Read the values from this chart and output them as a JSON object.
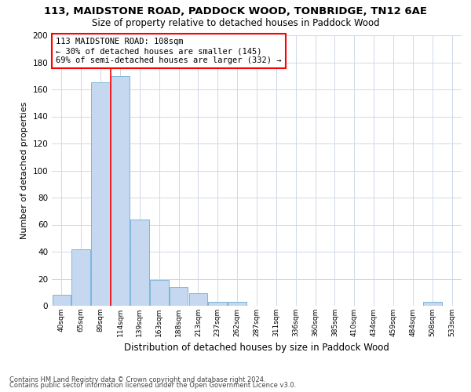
{
  "title1": "113, MAIDSTONE ROAD, PADDOCK WOOD, TONBRIDGE, TN12 6AE",
  "title2": "Size of property relative to detached houses in Paddock Wood",
  "xlabel": "Distribution of detached houses by size in Paddock Wood",
  "ylabel": "Number of detached properties",
  "footnote1": "Contains HM Land Registry data © Crown copyright and database right 2024.",
  "footnote2": "Contains public sector information licensed under the Open Government Licence v3.0.",
  "annotation_line1": "113 MAIDSTONE ROAD: 108sqm",
  "annotation_line2": "← 30% of detached houses are smaller (145)",
  "annotation_line3": "69% of semi-detached houses are larger (332) →",
  "bar_color": "#c5d8f0",
  "bar_edge_color": "#6baed6",
  "vline_color": "red",
  "vline_x_index": 3,
  "categories": [
    "40sqm",
    "65sqm",
    "89sqm",
    "114sqm",
    "139sqm",
    "163sqm",
    "188sqm",
    "213sqm",
    "237sqm",
    "262sqm",
    "287sqm",
    "311sqm",
    "336sqm",
    "360sqm",
    "385sqm",
    "410sqm",
    "434sqm",
    "459sqm",
    "484sqm",
    "508sqm",
    "533sqm"
  ],
  "values": [
    8,
    42,
    165,
    170,
    64,
    19,
    14,
    9,
    3,
    3,
    0,
    0,
    0,
    0,
    0,
    0,
    0,
    0,
    0,
    3,
    0
  ],
  "ylim": [
    0,
    200
  ],
  "yticks": [
    0,
    20,
    40,
    60,
    80,
    100,
    120,
    140,
    160,
    180,
    200
  ],
  "bg_color": "#ffffff",
  "grid_color": "#d0d8e8",
  "title1_fontsize": 9.5,
  "title2_fontsize": 8.5,
  "ylabel_fontsize": 8,
  "xlabel_fontsize": 8.5,
  "annotation_fontsize": 7.5,
  "tick_fontsize": 6.5,
  "ytick_fontsize": 7.5,
  "footnote_fontsize": 6
}
